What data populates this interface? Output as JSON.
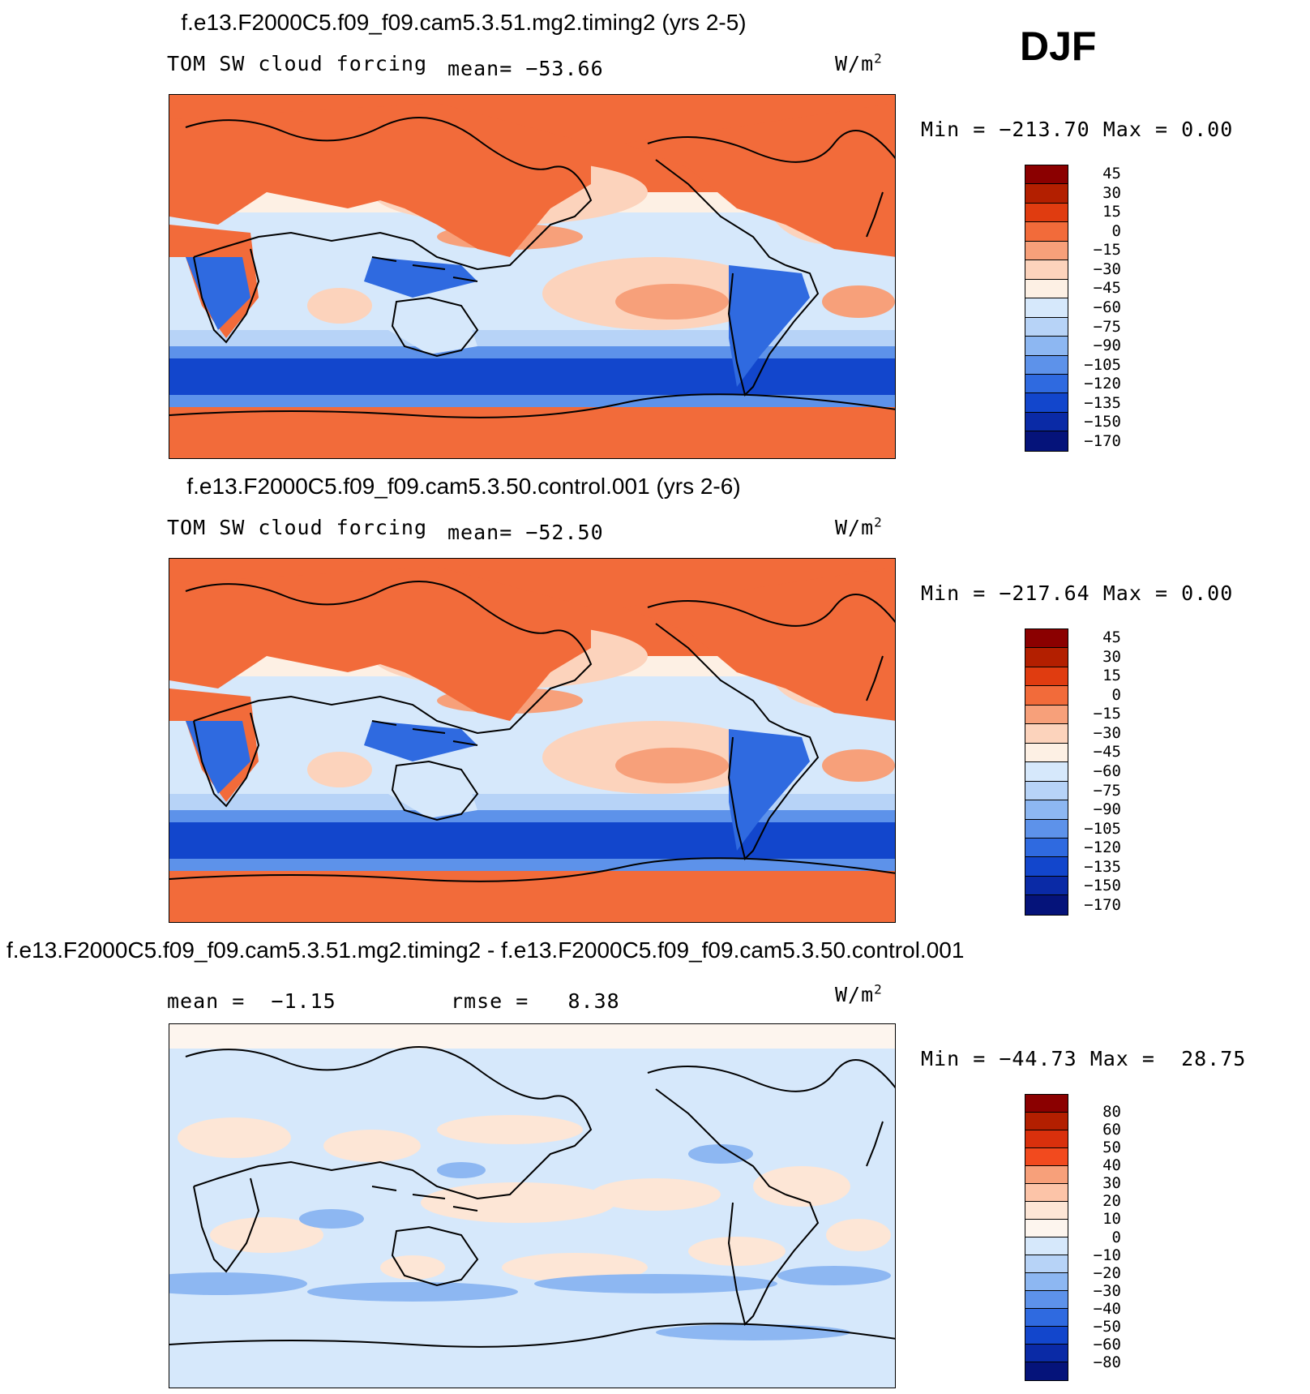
{
  "season": "DJF",
  "panels": [
    {
      "title": "f.e13.F2000C5.f09_f09.cam5.3.51.mg2.timing2 (yrs 2-5)",
      "variable": "TOM SW cloud forcing",
      "mean_label": "mean=",
      "mean": "−53.66",
      "units": "W/m",
      "units_power": "2",
      "min_label": "Min =",
      "min": "−213.70",
      "max_label": "Max =",
      "max": "0.00",
      "map_style": "field"
    },
    {
      "title": "f.e13.F2000C5.f09_f09.cam5.3.50.control.001 (yrs 2-6)",
      "variable": "TOM SW cloud forcing",
      "mean_label": "mean=",
      "mean": "−52.50",
      "units": "W/m",
      "units_power": "2",
      "min_label": "Min =",
      "min": "−217.64",
      "max_label": "Max =",
      "max": "0.00",
      "map_style": "field"
    },
    {
      "title": "f.e13.F2000C5.f09_f09.cam5.3.51.mg2.timing2 - f.e13.F2000C5.f09_f09.cam5.3.50.control.001",
      "mean_label": "mean =",
      "mean": "−1.15",
      "rmse_label": "rmse =",
      "rmse": "8.38",
      "units": "W/m",
      "units_power": "2",
      "min_label": "Min =",
      "min": "−44.73",
      "max_label": "Max =",
      "max": "28.75",
      "map_style": "difference"
    }
  ],
  "colorbars": {
    "field": {
      "colors": [
        "#8b0000",
        "#b31f00",
        "#e03c10",
        "#f26b3a",
        "#f7a07a",
        "#fcd3bc",
        "#fdf0e4",
        "#d6e8fb",
        "#b7d3f7",
        "#8db7f2",
        "#5d92ea",
        "#2f6ae0",
        "#1246cc",
        "#0a2aa6",
        "#05137a"
      ],
      "labels": [
        "45",
        "30",
        "15",
        "0",
        "−15",
        "−30",
        "−45",
        "−60",
        "−75",
        "−90",
        "−105",
        "−120",
        "−135",
        "−150",
        "−170"
      ]
    },
    "difference": {
      "colors": [
        "#8b0000",
        "#b31f00",
        "#d9300c",
        "#f24a1e",
        "#f7a07a",
        "#fcc4a8",
        "#fde6d6",
        "#fdf5ee",
        "#d6e8fb",
        "#b7d3f7",
        "#8db7f2",
        "#5d92ea",
        "#2f6ae0",
        "#1246cc",
        "#0a2aa6",
        "#05137a"
      ],
      "labels": [
        "80",
        "60",
        "50",
        "40",
        "30",
        "20",
        "10",
        "0",
        "−10",
        "−20",
        "−30",
        "−40",
        "−50",
        "−60",
        "−80"
      ]
    }
  }
}
